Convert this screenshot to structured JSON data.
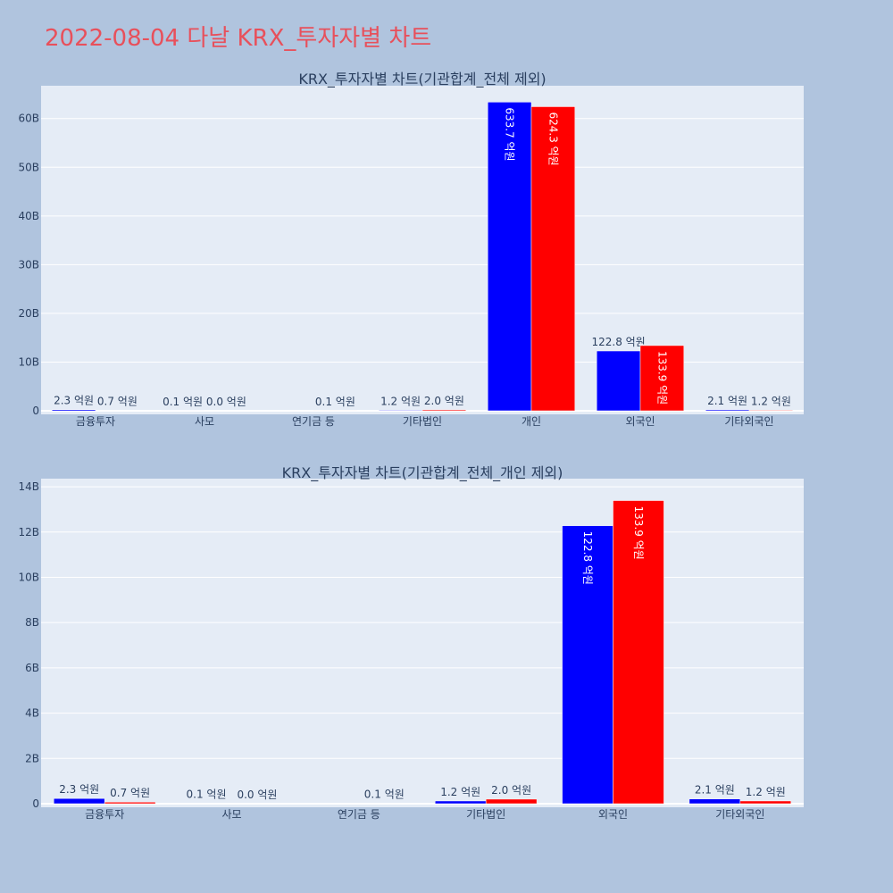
{
  "page": {
    "title": "2022-08-04 다날 KRX_투자자별 차트"
  },
  "chart_data": [
    {
      "type": "bar",
      "title": "KRX_투자자별 차트(기관합계_전체 제외)",
      "categories": [
        "금융투자",
        "사모",
        "연기금 등",
        "기타법인",
        "개인",
        "외국인",
        "기타외국인"
      ],
      "ylim": [
        0,
        66000000000
      ],
      "yticks": [
        0,
        10000000000,
        20000000000,
        30000000000,
        40000000000,
        50000000000,
        60000000000
      ],
      "ytick_labels": [
        "0",
        "10B",
        "20B",
        "30B",
        "40B",
        "50B",
        "60B"
      ],
      "grid": true,
      "series": [
        {
          "color": "#0000ff",
          "values": [
            230000000,
            10000000,
            0,
            120000000,
            63370000000,
            12280000000,
            210000000
          ],
          "labels": [
            "2.3 억원",
            "0.1 억원",
            "",
            "1.2 억원",
            "633.7 억원",
            "122.8 억원",
            "2.1 억원"
          ]
        },
        {
          "color": "#ff0000",
          "values": [
            70000000,
            0,
            10000000,
            200000000,
            62430000000,
            13390000000,
            120000000
          ],
          "labels": [
            "0.7 억원",
            "0.0 억원",
            "0.1 억원",
            "2.0 억원",
            "624.3 억원",
            "133.9 억원",
            "1.2 억원"
          ]
        }
      ]
    },
    {
      "type": "bar",
      "title": "KRX_투자자별 차트(기관합계_전체_개인 제외)",
      "categories": [
        "금융투자",
        "사모",
        "연기금 등",
        "기타법인",
        "외국인",
        "기타외국인"
      ],
      "ylim": [
        0,
        14200000000
      ],
      "yticks": [
        0,
        2000000000,
        4000000000,
        6000000000,
        8000000000,
        10000000000,
        12000000000,
        14000000000
      ],
      "ytick_labels": [
        "0",
        "2B",
        "4B",
        "6B",
        "8B",
        "10B",
        "12B",
        "14B"
      ],
      "grid": true,
      "series": [
        {
          "color": "#0000ff",
          "values": [
            230000000,
            10000000,
            0,
            120000000,
            12280000000,
            210000000
          ],
          "labels": [
            "2.3 억원",
            "0.1 억원",
            "",
            "1.2 억원",
            "122.8 억원",
            "2.1 억원"
          ]
        },
        {
          "color": "#ff0000",
          "values": [
            70000000,
            0,
            10000000,
            200000000,
            13390000000,
            120000000
          ],
          "labels": [
            "0.7 억원",
            "0.0 억원",
            "0.1 억원",
            "2.0 억원",
            "133.9 억원",
            "1.2 억원"
          ]
        }
      ]
    }
  ]
}
